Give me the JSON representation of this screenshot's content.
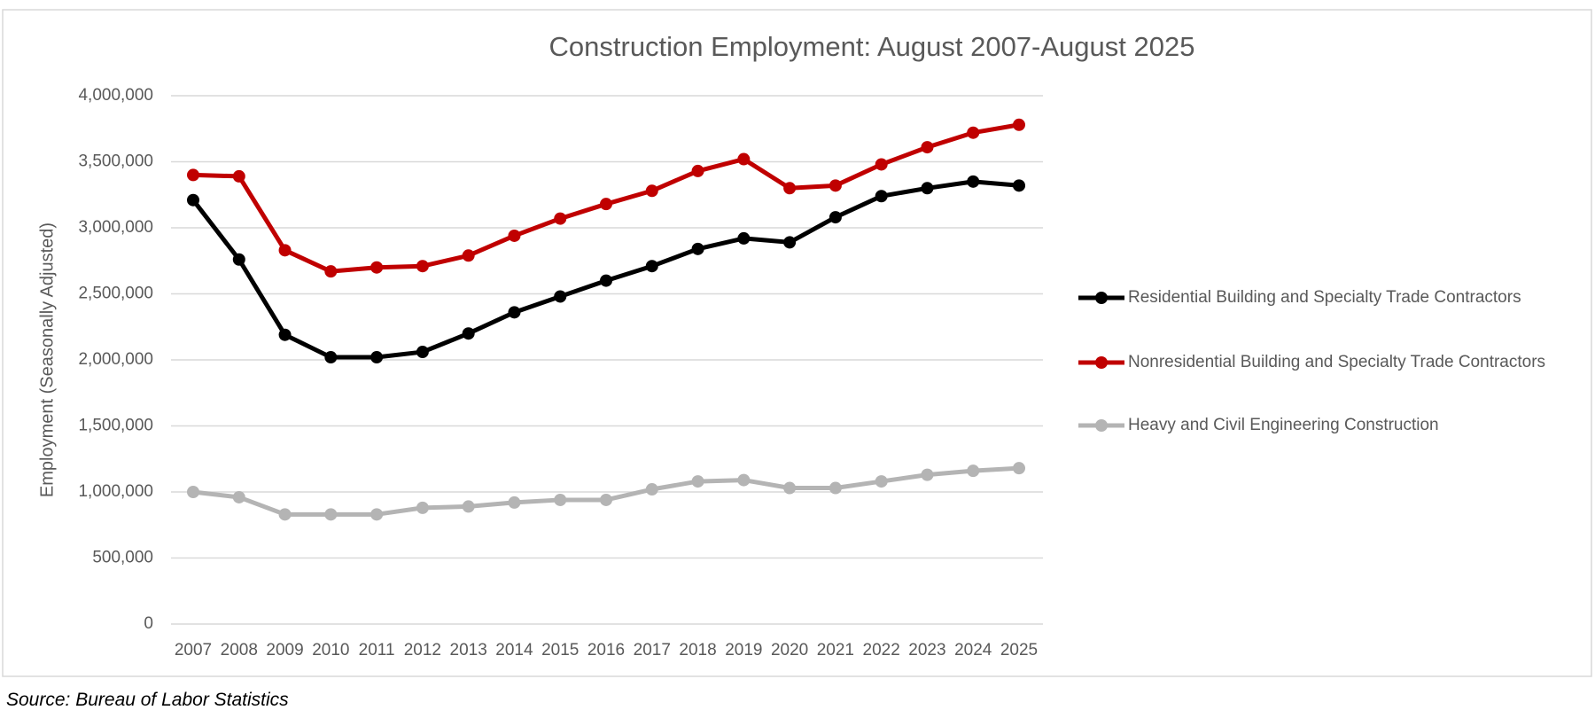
{
  "chart_data": {
    "type": "line",
    "title": "Construction Employment: August 2007-August 2025",
    "y_label": "Employment (Seasonally Adjusted)",
    "source": "Source: Bureau of Labor Statistics",
    "categories": [
      "2007",
      "2008",
      "2009",
      "2010",
      "2011",
      "2012",
      "2013",
      "2014",
      "2015",
      "2016",
      "2017",
      "2018",
      "2019",
      "2020",
      "2021",
      "2022",
      "2023",
      "2024",
      "2025"
    ],
    "series": [
      {
        "name": "Residential Building and Specialty Trade Contractors",
        "color": "#000000",
        "values": [
          3210000,
          2760000,
          2190000,
          2020000,
          2020000,
          2060000,
          2200000,
          2360000,
          2480000,
          2600000,
          2710000,
          2840000,
          2920000,
          2890000,
          3080000,
          3240000,
          3300000,
          3350000,
          3320000
        ]
      },
      {
        "name": "Nonresidential Building and Specialty Trade Contractors",
        "color": "#c00000",
        "values": [
          3400000,
          3390000,
          2830000,
          2670000,
          2700000,
          2710000,
          2790000,
          2940000,
          3070000,
          3180000,
          3280000,
          3430000,
          3520000,
          3300000,
          3320000,
          3480000,
          3610000,
          3720000,
          3780000
        ]
      },
      {
        "name": "Heavy and Civil Engineering Construction",
        "color": "#b4b4b4",
        "values": [
          1000000,
          960000,
          830000,
          830000,
          830000,
          880000,
          890000,
          920000,
          940000,
          940000,
          1020000,
          1080000,
          1090000,
          1030000,
          1030000,
          1080000,
          1130000,
          1160000,
          1180000
        ]
      }
    ],
    "ylim": [
      0,
      4000000
    ],
    "yticks": [
      0,
      {
        "value": 500000,
        "label": "500,000"
      },
      {
        "value": 1000000,
        "label": "1,000,000"
      },
      {
        "value": 1500000,
        "label": "1,500,000"
      },
      {
        "value": 2000000,
        "label": "2,000,000"
      },
      {
        "value": 2500000,
        "label": "2,500,000"
      },
      {
        "value": 3000000,
        "label": "3,000,000"
      },
      {
        "value": 3500000,
        "label": "3,500,000"
      },
      {
        "value": 4000000,
        "label": "4,000,000"
      }
    ],
    "grid": true,
    "legend": "right"
  }
}
